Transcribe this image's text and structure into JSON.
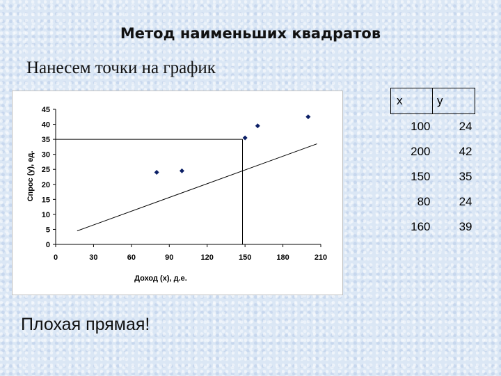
{
  "slide": {
    "title": "Метод наименьших квадратов",
    "subtitle": "Нанесем точки на график",
    "footer": "Плохая прямая!"
  },
  "table": {
    "headers": [
      "x",
      "y"
    ],
    "rows": [
      [
        "100",
        "24"
      ],
      [
        "200",
        "42"
      ],
      [
        "150",
        "35"
      ],
      [
        "80",
        "24"
      ],
      [
        "160",
        "39"
      ]
    ]
  },
  "chart_data": {
    "type": "scatter",
    "title": "",
    "xlabel": "Доход (x), д.е.",
    "ylabel": "Спрос (y), ед.",
    "xlim": [
      0,
      210
    ],
    "ylim": [
      0,
      45
    ],
    "xticks": [
      0,
      30,
      60,
      90,
      120,
      150,
      180,
      210
    ],
    "yticks": [
      0,
      5,
      10,
      15,
      20,
      25,
      30,
      35,
      40,
      45
    ],
    "grid": false,
    "series": [
      {
        "points": [
          {
            "x": 80,
            "y": 24
          },
          {
            "x": 100,
            "y": 24.5
          },
          {
            "x": 150,
            "y": 35.5
          },
          {
            "x": 160,
            "y": 39.5
          },
          {
            "x": 200,
            "y": 42.5
          }
        ],
        "marker": "diamond",
        "color": "#0b1f66"
      }
    ],
    "fit_line": {
      "x1": 17,
      "y1": 4.5,
      "x2": 207,
      "y2": 33.5,
      "color": "#000000"
    },
    "reference_lines": {
      "x": 148,
      "y": 35,
      "color": "#000000"
    }
  }
}
